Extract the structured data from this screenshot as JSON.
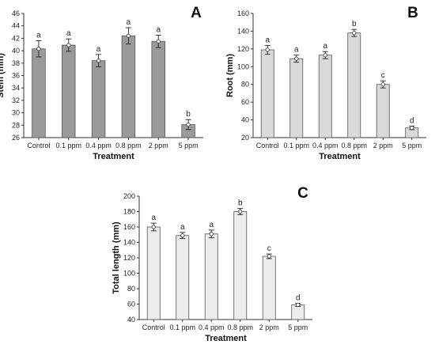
{
  "chart_data": [
    {
      "panel": "A",
      "type": "bar",
      "categories": [
        "Control",
        "0.1 ppm",
        "0.4 ppm",
        "0.8 ppm",
        "2 ppm",
        "5 ppm"
      ],
      "values": [
        40.3,
        40.9,
        38.4,
        42.4,
        41.5,
        28.1
      ],
      "errors": [
        1.3,
        1.0,
        1.0,
        1.3,
        1.0,
        0.8
      ],
      "significance": [
        "a",
        "a",
        "a",
        "a",
        "a",
        "b"
      ],
      "xlabel": "Treatment",
      "ylabel": "Stem (mm)",
      "ylim": [
        26,
        46
      ],
      "yticks": [
        26,
        28,
        30,
        32,
        34,
        36,
        38,
        40,
        42,
        44,
        46
      ],
      "bar_color": "#9a9a9a"
    },
    {
      "panel": "B",
      "type": "bar",
      "categories": [
        "Control",
        "0.1 ppm",
        "0.4 ppm",
        "0.8 ppm",
        "2 ppm",
        "5 ppm"
      ],
      "values": [
        119,
        109,
        113,
        138,
        80,
        31
      ],
      "errors": [
        5,
        4,
        4,
        4,
        4,
        2
      ],
      "significance": [
        "a",
        "a",
        "a",
        "b",
        "c",
        "d"
      ],
      "xlabel": "Treatment",
      "ylabel": "Root (mm)",
      "ylim": [
        20,
        160
      ],
      "yticks": [
        20,
        40,
        60,
        80,
        100,
        120,
        140,
        160
      ],
      "bar_color": "#d9d9d9"
    },
    {
      "panel": "C",
      "type": "bar",
      "categories": [
        "Control",
        "0.1 ppm",
        "0.4 ppm",
        "0.8 ppm",
        "2 ppm",
        "5 ppm"
      ],
      "values": [
        160,
        149,
        151,
        180,
        122,
        59
      ],
      "errors": [
        5,
        4,
        5,
        4,
        3,
        2
      ],
      "significance": [
        "a",
        "a",
        "a",
        "b",
        "c",
        "d"
      ],
      "xlabel": "Treatment",
      "ylabel": "Total length (mm)",
      "ylim": [
        40,
        200
      ],
      "yticks": [
        40,
        60,
        80,
        100,
        120,
        140,
        160,
        180,
        200
      ],
      "bar_color": "#ececec"
    }
  ]
}
